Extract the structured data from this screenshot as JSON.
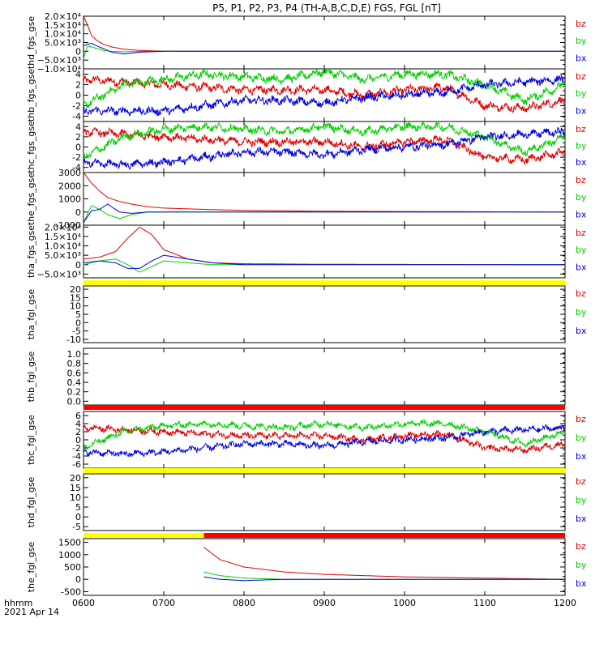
{
  "title": "P5, P1, P2, P3, P4 (TH-A,B,C,D,E) FGS, FGL [nT]",
  "time_axis": {
    "ticks": [
      "0600",
      "0700",
      "0800",
      "0900",
      "1000",
      "1100",
      "1200"
    ],
    "label_line1": "hhmm",
    "label_line2": "2021 Apr 14"
  },
  "colors": {
    "bz": "#e00000",
    "by": "#00d000",
    "bx": "#0000e0",
    "yellow": "#ffff00",
    "red": "#ff0000"
  },
  "chart_data": [
    {
      "type": "line",
      "ylabel": "thd_fgs_gse",
      "legend": [
        "bz",
        "by",
        "bx"
      ],
      "ytick_labels": [
        "2.0×10⁴",
        "1.5×10⁴",
        "1.0×10⁴",
        "5.0×10³",
        "0",
        "−5.0×10³",
        "−1.0×10⁴"
      ],
      "ylim": [
        -10000,
        20000
      ],
      "x_hours": [
        6.0,
        6.05,
        6.1,
        6.17,
        6.25,
        6.35,
        6.5,
        6.7,
        7.0,
        8.0,
        12.0
      ],
      "series": [
        {
          "name": "bz",
          "values": [
            20000,
            15000,
            9000,
            6000,
            4000,
            2500,
            1200,
            500,
            100,
            0,
            0
          ]
        },
        {
          "name": "by",
          "values": [
            -4000,
            3000,
            2500,
            1500,
            500,
            0,
            -300,
            -100,
            50,
            0,
            0
          ]
        },
        {
          "name": "bx",
          "values": [
            3000,
            4000,
            4500,
            3000,
            1500,
            -500,
            -1500,
            -500,
            0,
            0,
            0
          ]
        }
      ]
    },
    {
      "type": "line",
      "ylabel": "thb_fgs_gse",
      "legend": [
        "bz",
        "by",
        "bx"
      ],
      "ytick_labels": [
        "4",
        "2",
        "0",
        "-2",
        "-4"
      ],
      "ylim": [
        -5,
        5
      ],
      "x_hours": [
        6.0,
        6.5,
        7.0,
        7.5,
        8.0,
        8.5,
        9.0,
        9.5,
        10.0,
        10.5,
        11.0,
        11.5,
        12.0
      ],
      "series": [
        {
          "name": "bz",
          "values": [
            3.0,
            2.5,
            2.0,
            1.5,
            1.0,
            1.0,
            1.0,
            0.0,
            1.0,
            1.5,
            -2.0,
            -2.5,
            -1.0
          ]
        },
        {
          "name": "by",
          "values": [
            -2.0,
            2.0,
            3.0,
            4.0,
            3.5,
            3.0,
            4.5,
            3.0,
            4.0,
            4.0,
            2.0,
            -1.0,
            2.0
          ]
        },
        {
          "name": "bx",
          "values": [
            -3.0,
            -3.0,
            -3.0,
            -2.0,
            -1.0,
            -1.0,
            -1.5,
            -0.5,
            0.0,
            0.5,
            2.0,
            2.5,
            3.0
          ]
        }
      ]
    },
    {
      "type": "line",
      "ylabel": "thc_fgs_gse",
      "legend": [
        "bz",
        "by",
        "bx"
      ],
      "ytick_labels": [
        "4",
        "2",
        "0",
        "-2",
        "-4"
      ],
      "ylim": [
        -5,
        5
      ],
      "x_hours": [
        6.0,
        6.5,
        7.0,
        7.5,
        8.0,
        8.5,
        9.0,
        9.5,
        10.0,
        10.5,
        11.0,
        11.5,
        12.0
      ],
      "series": [
        {
          "name": "bz",
          "values": [
            3.0,
            2.5,
            2.0,
            1.5,
            1.0,
            1.0,
            1.0,
            0.0,
            1.0,
            1.5,
            -2.0,
            -2.5,
            -1.0
          ]
        },
        {
          "name": "by",
          "values": [
            -2.0,
            2.0,
            3.5,
            4.0,
            3.5,
            3.0,
            4.0,
            3.0,
            4.0,
            4.0,
            2.0,
            -1.0,
            2.0
          ]
        },
        {
          "name": "bx",
          "values": [
            -3.0,
            -3.5,
            -3.0,
            -2.0,
            -1.0,
            -1.0,
            -1.5,
            -0.5,
            0.0,
            0.5,
            2.0,
            2.5,
            3.0
          ]
        }
      ]
    },
    {
      "type": "line",
      "ylabel": "the_fgs_gse",
      "legend": [
        "bz",
        "by",
        "bx"
      ],
      "ytick_labels": [
        "3000",
        "2000",
        "1000",
        "0",
        "-1000"
      ],
      "ylim": [
        -1000,
        3000
      ],
      "x_hours": [
        6.0,
        6.1,
        6.2,
        6.3,
        6.45,
        6.6,
        6.8,
        7.0,
        7.5,
        8.0,
        9.0,
        12.0
      ],
      "series": [
        {
          "name": "bz",
          "values": [
            3000,
            2200,
            1600,
            1100,
            800,
            600,
            400,
            300,
            200,
            120,
            60,
            0
          ]
        },
        {
          "name": "by",
          "values": [
            -800,
            500,
            200,
            -200,
            -500,
            -200,
            0,
            0,
            0,
            0,
            0,
            0
          ]
        },
        {
          "name": "bx",
          "values": [
            -800,
            100,
            200,
            600,
            0,
            -100,
            0,
            0,
            0,
            0,
            0,
            0
          ]
        }
      ]
    },
    {
      "type": "line",
      "ylabel": "tha_fgs_gse",
      "legend": [
        "bz",
        "by",
        "bx"
      ],
      "ytick_labels": [
        "2.0×10⁴",
        "1.5×10⁴",
        "1.0×10⁴",
        "5.0×10³",
        "0",
        "−5.0×10³"
      ],
      "ylim": [
        -7000,
        21000
      ],
      "x_hours": [
        6.0,
        6.2,
        6.4,
        6.55,
        6.7,
        6.85,
        7.0,
        7.3,
        7.6,
        8.0,
        9.0,
        12.0
      ],
      "series": [
        {
          "name": "bz",
          "values": [
            3000,
            4000,
            7000,
            14000,
            20000,
            16000,
            8000,
            3000,
            1000,
            500,
            200,
            0
          ]
        },
        {
          "name": "by",
          "values": [
            0,
            2000,
            3000,
            0,
            -4000,
            -1000,
            2000,
            1000,
            0,
            0,
            0,
            0
          ]
        },
        {
          "name": "bx",
          "values": [
            1000,
            2000,
            1000,
            -2000,
            -2000,
            2000,
            5000,
            3000,
            1000,
            0,
            0,
            0
          ]
        }
      ]
    },
    {
      "type": "line",
      "ylabel": "tha_fgl_gse",
      "legend": [
        "bz",
        "by",
        "bx"
      ],
      "ytick_labels": [
        "20",
        "15",
        "10",
        "5",
        "0",
        "-5",
        "-10"
      ],
      "ylim": [
        -12,
        22
      ],
      "status_bar": "yellow",
      "series": []
    },
    {
      "type": "line",
      "ylabel": "thb_fgl_gse",
      "legend": [],
      "ytick_labels": [
        "1.0",
        "0.8",
        "0.6",
        "0.4",
        "0.2",
        "0.0"
      ],
      "ylim": [
        -0.08,
        1.12
      ],
      "series": []
    },
    {
      "type": "line",
      "ylabel": "thc_fgl_gse",
      "legend": [
        "bz",
        "by",
        "bx"
      ],
      "ytick_labels": [
        "6",
        "4",
        "2",
        "0",
        "-2",
        "-4",
        "-6"
      ],
      "ylim": [
        -7,
        7
      ],
      "status_bar": "red",
      "x_hours": [
        6.0,
        6.5,
        7.0,
        7.5,
        8.0,
        8.5,
        9.0,
        9.5,
        10.0,
        10.5,
        11.0,
        11.5,
        12.0
      ],
      "series": [
        {
          "name": "bz",
          "values": [
            3.0,
            2.5,
            2.0,
            1.5,
            1.0,
            1.0,
            1.0,
            0.0,
            1.0,
            1.5,
            -2.0,
            -2.5,
            -1.0
          ]
        },
        {
          "name": "by",
          "values": [
            -2.0,
            2.0,
            3.5,
            4.0,
            3.5,
            3.0,
            4.0,
            3.0,
            4.0,
            4.0,
            2.0,
            -1.0,
            2.0
          ]
        },
        {
          "name": "bx",
          "values": [
            -3.0,
            -3.5,
            -3.0,
            -2.0,
            -1.0,
            -1.0,
            -1.5,
            -0.5,
            0.0,
            0.5,
            2.0,
            2.5,
            3.0
          ]
        }
      ]
    },
    {
      "type": "line",
      "ylabel": "thd_fgl_gse",
      "legend": [
        "bz",
        "by",
        "bx"
      ],
      "ytick_labels": [
        "20",
        "15",
        "10",
        "5",
        "0",
        "-5"
      ],
      "ylim": [
        -7,
        22
      ],
      "status_bar": "yellow",
      "series": []
    },
    {
      "type": "line",
      "ylabel": "the_fgl_gse",
      "legend": [
        "bz",
        "by",
        "bx"
      ],
      "ytick_labels": [
        "1500",
        "1000",
        "500",
        "0",
        "-500"
      ],
      "ylim": [
        -650,
        1650
      ],
      "status_bar": "yellow/red",
      "x_hours": [
        7.5,
        7.7,
        8.0,
        8.5,
        9.0,
        10.0,
        11.0,
        12.0
      ],
      "series": [
        {
          "name": "bz",
          "values": [
            1300,
            800,
            500,
            300,
            200,
            100,
            50,
            0
          ]
        },
        {
          "name": "by",
          "values": [
            300,
            150,
            50,
            0,
            0,
            0,
            0,
            0
          ]
        },
        {
          "name": "bx",
          "values": [
            100,
            0,
            -50,
            0,
            0,
            0,
            0,
            0
          ]
        }
      ]
    }
  ]
}
